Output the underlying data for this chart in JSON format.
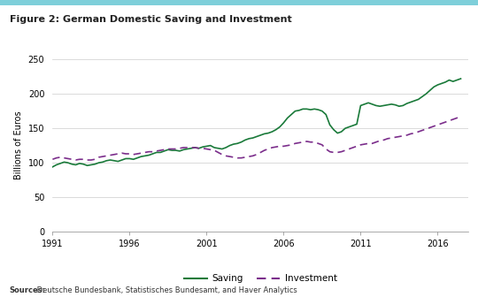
{
  "title": "Figure 2: German Domestic Saving and Investment",
  "ylabel": "Billions of Euros",
  "source_bold": "Sources:",
  "source_rest": " Deutsche Bundesbank, Statistisches Bundesamt, and Haver Analytics",
  "xlim": [
    1991,
    2018
  ],
  "ylim": [
    0,
    250
  ],
  "yticks": [
    0,
    50,
    100,
    150,
    200,
    250
  ],
  "xticks": [
    1991,
    1996,
    2001,
    2006,
    2011,
    2016
  ],
  "saving_color": "#1a7a3a",
  "investment_color": "#7b2d8b",
  "top_bar_color": "#7ecfda",
  "saving_years": [
    1991,
    1991.25,
    1991.5,
    1991.75,
    1992,
    1992.25,
    1992.5,
    1992.75,
    1993,
    1993.25,
    1993.5,
    1993.75,
    1994,
    1994.25,
    1994.5,
    1994.75,
    1995,
    1995.25,
    1995.5,
    1995.75,
    1996,
    1996.25,
    1996.5,
    1996.75,
    1997,
    1997.25,
    1997.5,
    1997.75,
    1998,
    1998.25,
    1998.5,
    1998.75,
    1999,
    1999.25,
    1999.5,
    1999.75,
    2000,
    2000.25,
    2000.5,
    2000.75,
    2001,
    2001.25,
    2001.5,
    2001.75,
    2002,
    2002.25,
    2002.5,
    2002.75,
    2003,
    2003.25,
    2003.5,
    2003.75,
    2004,
    2004.25,
    2004.5,
    2004.75,
    2005,
    2005.25,
    2005.5,
    2005.75,
    2006,
    2006.25,
    2006.5,
    2006.75,
    2007,
    2007.25,
    2007.5,
    2007.75,
    2008,
    2008.25,
    2008.5,
    2008.75,
    2009,
    2009.25,
    2009.5,
    2009.75,
    2010,
    2010.25,
    2010.5,
    2010.75,
    2011,
    2011.25,
    2011.5,
    2011.75,
    2012,
    2012.25,
    2012.5,
    2012.75,
    2013,
    2013.25,
    2013.5,
    2013.75,
    2014,
    2014.25,
    2014.5,
    2014.75,
    2015,
    2015.25,
    2015.5,
    2015.75,
    2016,
    2016.25,
    2016.5,
    2016.75,
    2017,
    2017.25,
    2017.5
  ],
  "saving_values": [
    94,
    97,
    99,
    101,
    100,
    98,
    97,
    99,
    98,
    96,
    97,
    98,
    100,
    101,
    103,
    104,
    103,
    102,
    104,
    106,
    106,
    105,
    107,
    109,
    110,
    111,
    113,
    115,
    115,
    117,
    119,
    118,
    118,
    117,
    119,
    120,
    121,
    122,
    121,
    123,
    124,
    125,
    122,
    121,
    120,
    122,
    125,
    127,
    128,
    130,
    133,
    135,
    136,
    138,
    140,
    142,
    143,
    145,
    148,
    152,
    158,
    165,
    170,
    175,
    176,
    178,
    178,
    177,
    178,
    177,
    175,
    170,
    155,
    148,
    143,
    145,
    150,
    152,
    154,
    156,
    183,
    185,
    187,
    185,
    183,
    182,
    183,
    184,
    185,
    184,
    182,
    183,
    186,
    188,
    190,
    192,
    196,
    200,
    205,
    210,
    213,
    215,
    217,
    220,
    218,
    220,
    222
  ],
  "investment_years": [
    1991,
    1991.25,
    1991.5,
    1991.75,
    1992,
    1992.25,
    1992.5,
    1992.75,
    1993,
    1993.25,
    1993.5,
    1993.75,
    1994,
    1994.25,
    1994.5,
    1994.75,
    1995,
    1995.25,
    1995.5,
    1995.75,
    1996,
    1996.25,
    1996.5,
    1996.75,
    1997,
    1997.25,
    1997.5,
    1997.75,
    1998,
    1998.25,
    1998.5,
    1998.75,
    1999,
    1999.25,
    1999.5,
    1999.75,
    2000,
    2000.25,
    2000.5,
    2000.75,
    2001,
    2001.25,
    2001.5,
    2001.75,
    2002,
    2002.25,
    2002.5,
    2002.75,
    2003,
    2003.25,
    2003.5,
    2003.75,
    2004,
    2004.25,
    2004.5,
    2004.75,
    2005,
    2005.25,
    2005.5,
    2005.75,
    2006,
    2006.25,
    2006.5,
    2006.75,
    2007,
    2007.25,
    2007.5,
    2007.75,
    2008,
    2008.25,
    2008.5,
    2008.75,
    2009,
    2009.25,
    2009.5,
    2009.75,
    2010,
    2010.25,
    2010.5,
    2010.75,
    2011,
    2011.25,
    2011.5,
    2011.75,
    2012,
    2012.25,
    2012.5,
    2012.75,
    2013,
    2013.25,
    2013.5,
    2013.75,
    2014,
    2014.25,
    2014.5,
    2014.75,
    2015,
    2015.25,
    2015.5,
    2015.75,
    2016,
    2016.25,
    2016.5,
    2016.75,
    2017,
    2017.25,
    2017.5
  ],
  "investment_values": [
    105,
    107,
    108,
    107,
    106,
    105,
    104,
    105,
    105,
    104,
    104,
    105,
    108,
    109,
    110,
    111,
    112,
    113,
    114,
    113,
    113,
    112,
    113,
    114,
    115,
    116,
    116,
    117,
    118,
    119,
    120,
    120,
    120,
    121,
    122,
    122,
    122,
    122,
    121,
    121,
    120,
    119,
    118,
    115,
    112,
    110,
    109,
    108,
    107,
    107,
    108,
    109,
    110,
    112,
    115,
    118,
    120,
    122,
    123,
    124,
    124,
    125,
    126,
    128,
    129,
    130,
    131,
    130,
    130,
    128,
    126,
    120,
    116,
    115,
    115,
    116,
    118,
    120,
    122,
    124,
    126,
    127,
    128,
    128,
    130,
    132,
    133,
    135,
    136,
    137,
    138,
    139,
    140,
    142,
    143,
    145,
    147,
    149,
    151,
    153,
    155,
    157,
    159,
    161,
    163,
    165,
    167
  ]
}
